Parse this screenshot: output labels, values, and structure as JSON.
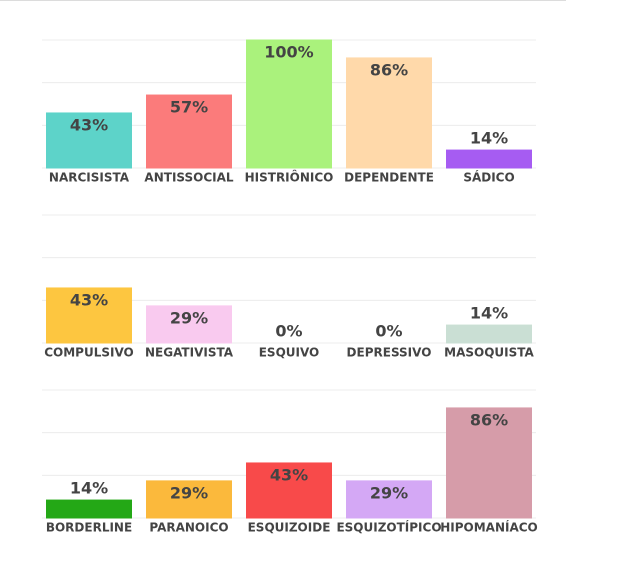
{
  "chart_data": [
    {
      "type": "bar",
      "categories": [
        "NARCISISTA",
        "ANTISSOCIAL",
        "HISTRIÔNICO",
        "DEPENDENTE",
        "SÁDICO"
      ],
      "values": [
        43,
        57,
        100,
        86,
        14
      ],
      "value_labels": [
        "43%",
        "57%",
        "100%",
        "86%",
        "14%"
      ],
      "colors": [
        "#5dd3c9",
        "#fb7b7b",
        "#aaf27c",
        "#ffd9aa",
        "#a65cf2"
      ],
      "ylim": [
        0,
        100
      ],
      "grid_lines": [
        0,
        33.3,
        66.7,
        100
      ]
    },
    {
      "type": "bar",
      "categories": [
        "COMPULSIVO",
        "NEGATIVISTA",
        "ESQUIVO",
        "DEPRESSIVO",
        "MASOQUISTA"
      ],
      "values": [
        43,
        29,
        0,
        0,
        14
      ],
      "value_labels": [
        "43%",
        "29%",
        "0%",
        "0%",
        "14%"
      ],
      "colors": [
        "#fdc640",
        "#f9caef",
        "#3b8fd2",
        "#e8a83a",
        "#cadfd4"
      ],
      "ylim": [
        0,
        100
      ],
      "grid_lines": [
        0,
        33.3,
        66.7,
        100
      ]
    },
    {
      "type": "bar",
      "categories": [
        "BORDERLINE",
        "PARANOICO",
        "ESQUIZOIDE",
        "ESQUIZOTÍPICO",
        "HIPOMANÍACO"
      ],
      "values": [
        14,
        29,
        43,
        29,
        86
      ],
      "value_labels": [
        "14%",
        "29%",
        "43%",
        "29%",
        "86%"
      ],
      "colors": [
        "#24a816",
        "#fbb93c",
        "#f84a4a",
        "#d4a8f5",
        "#d69ca9"
      ],
      "ylim": [
        0,
        100
      ],
      "grid_lines": [
        0,
        33.3,
        66.7,
        100
      ]
    }
  ]
}
